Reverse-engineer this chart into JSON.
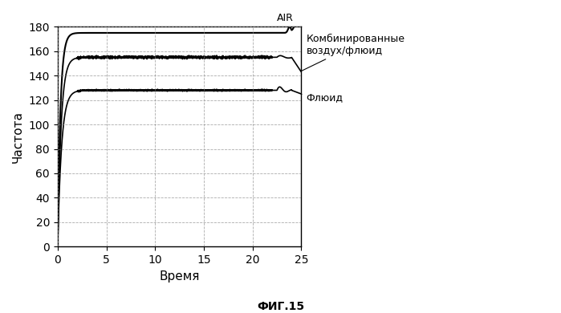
{
  "title": "",
  "xlabel": "Время",
  "ylabel": "Частота",
  "fig_caption": "ФИГ.15",
  "xlim": [
    0,
    25
  ],
  "ylim": [
    0,
    180
  ],
  "xticks": [
    0,
    5,
    10,
    15,
    20,
    25
  ],
  "yticks": [
    0,
    20,
    40,
    60,
    80,
    100,
    120,
    140,
    160,
    180
  ],
  "air_label": "AIR",
  "combined_label": "Комбинированные\nвоздух/флюид",
  "fluid_label": "Флюид",
  "air_steady": 175,
  "combined_steady": 155,
  "fluid_steady": 128,
  "background_color": "#ffffff",
  "line_color": "#000000",
  "grid_color": "#888888",
  "font_family": "DejaVu Sans"
}
